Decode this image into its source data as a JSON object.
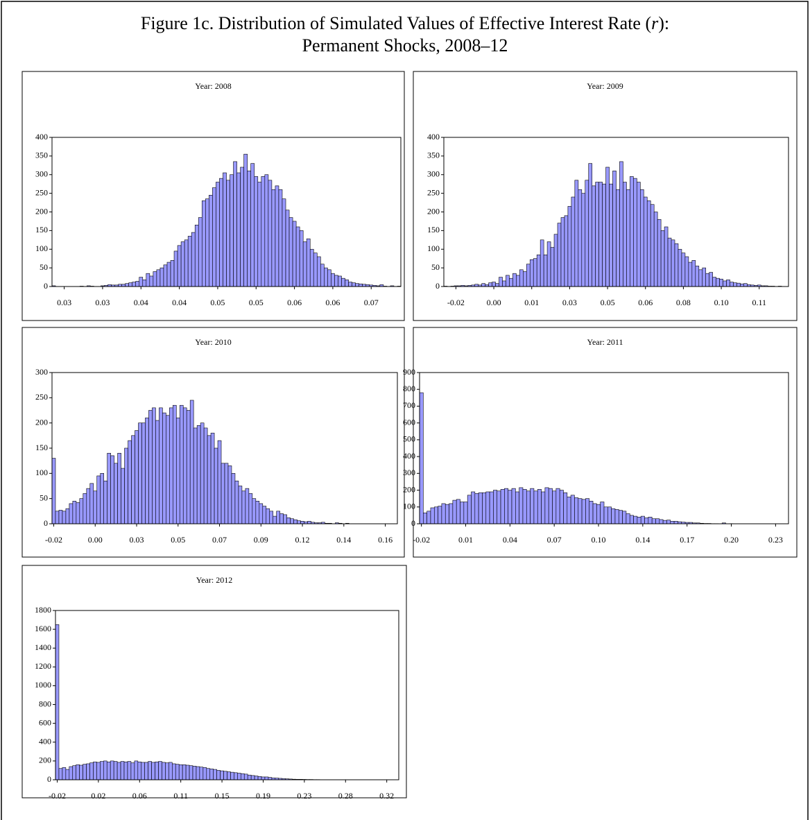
{
  "figure_title": [
    "Figure 1c. Distribution of Simulated Values of Effective Interest Rate (",
    "r",
    "):",
    "Permanent Shocks, 2008–12"
  ],
  "chart_data": [
    {
      "type": "bar",
      "title": "Year: 2008",
      "color": "#9999ff",
      "ylim": [
        0,
        400
      ],
      "yticks": [
        0,
        50,
        100,
        150,
        200,
        250,
        300,
        350,
        400
      ],
      "categories": [
        null,
        null,
        null,
        "0.03",
        null,
        null,
        null,
        null,
        null,
        null,
        null,
        null,
        null,
        null,
        "0.03",
        null,
        null,
        null,
        null,
        null,
        null,
        null,
        null,
        null,
        null,
        "0.04",
        null,
        null,
        null,
        null,
        null,
        null,
        null,
        null,
        null,
        null,
        "0.04",
        null,
        null,
        null,
        null,
        null,
        null,
        null,
        null,
        null,
        null,
        "0.05",
        null,
        null,
        null,
        null,
        null,
        null,
        null,
        null,
        null,
        null,
        "0.05",
        null,
        null,
        null,
        null,
        null,
        null,
        null,
        null,
        null,
        null,
        "0.06",
        null,
        null,
        null,
        null,
        null,
        null,
        null,
        null,
        null,
        null,
        "0.06",
        null,
        null,
        null,
        null,
        null,
        null,
        null,
        null,
        null,
        null,
        "0.07",
        null,
        null,
        null,
        null,
        null,
        null,
        null,
        null
      ],
      "values": [
        2,
        0,
        0,
        0,
        0,
        0,
        0,
        0,
        1,
        0,
        2,
        1,
        0,
        0,
        2,
        3,
        5,
        4,
        4,
        6,
        6,
        8,
        10,
        12,
        14,
        25,
        18,
        35,
        28,
        40,
        45,
        50,
        58,
        65,
        70,
        95,
        110,
        120,
        125,
        135,
        145,
        165,
        185,
        230,
        235,
        245,
        265,
        280,
        290,
        305,
        285,
        300,
        335,
        305,
        320,
        355,
        310,
        330,
        295,
        280,
        295,
        300,
        285,
        260,
        270,
        260,
        235,
        205,
        185,
        175,
        160,
        150,
        120,
        128,
        100,
        90,
        80,
        60,
        50,
        45,
        35,
        30,
        28,
        22,
        18,
        12,
        10,
        8,
        7,
        6,
        5,
        4,
        3,
        2,
        5,
        1,
        0,
        2,
        0,
        1
      ]
    },
    {
      "type": "bar",
      "title": "Year: 2009",
      "color": "#9999ff",
      "ylim": [
        0,
        400
      ],
      "yticks": [
        0,
        50,
        100,
        150,
        200,
        250,
        300,
        350,
        400
      ],
      "categories": [
        null,
        null,
        null,
        "-0.02",
        null,
        null,
        null,
        null,
        null,
        null,
        null,
        null,
        null,
        null,
        "0.00",
        null,
        null,
        null,
        null,
        null,
        null,
        null,
        null,
        null,
        null,
        "0.01",
        null,
        null,
        null,
        null,
        null,
        null,
        null,
        null,
        null,
        null,
        "0.03",
        null,
        null,
        null,
        null,
        null,
        null,
        null,
        null,
        null,
        null,
        "0.05",
        null,
        null,
        null,
        null,
        null,
        null,
        null,
        null,
        null,
        null,
        "0.06",
        null,
        null,
        null,
        null,
        null,
        null,
        null,
        null,
        null,
        null,
        "0.08",
        null,
        null,
        null,
        null,
        null,
        null,
        null,
        null,
        null,
        null,
        "0.10",
        null,
        null,
        null,
        null,
        null,
        null,
        null,
        null,
        null,
        null,
        "0.11",
        null,
        null,
        null,
        null,
        null,
        null,
        null,
        null
      ],
      "values": [
        1,
        0,
        1,
        2,
        2,
        3,
        2,
        3,
        4,
        6,
        4,
        8,
        5,
        10,
        12,
        8,
        25,
        15,
        30,
        22,
        35,
        30,
        45,
        40,
        60,
        72,
        75,
        85,
        125,
        85,
        120,
        105,
        140,
        170,
        185,
        190,
        215,
        240,
        285,
        260,
        250,
        285,
        330,
        270,
        280,
        280,
        275,
        320,
        275,
        310,
        260,
        335,
        280,
        260,
        295,
        290,
        280,
        260,
        240,
        230,
        220,
        200,
        180,
        150,
        160,
        130,
        125,
        115,
        100,
        90,
        80,
        65,
        70,
        55,
        45,
        50,
        35,
        38,
        25,
        22,
        20,
        15,
        18,
        12,
        10,
        9,
        7,
        8,
        5,
        4,
        3,
        4,
        2,
        2,
        1,
        1,
        0,
        1,
        0,
        0
      ]
    },
    {
      "type": "bar",
      "title": "Year: 2010",
      "color": "#9999ff",
      "ylim": [
        0,
        300
      ],
      "yticks": [
        0,
        50,
        100,
        150,
        200,
        250,
        300
      ],
      "categories": [
        "-0.02",
        null,
        null,
        null,
        null,
        null,
        null,
        null,
        null,
        null,
        null,
        null,
        "0.00",
        null,
        null,
        null,
        null,
        null,
        null,
        null,
        null,
        null,
        null,
        null,
        "0.03",
        null,
        null,
        null,
        null,
        null,
        null,
        null,
        null,
        null,
        null,
        null,
        "0.05",
        null,
        null,
        null,
        null,
        null,
        null,
        null,
        null,
        null,
        null,
        null,
        "0.07",
        null,
        null,
        null,
        null,
        null,
        null,
        null,
        null,
        null,
        null,
        null,
        "0.09",
        null,
        null,
        null,
        null,
        null,
        null,
        null,
        null,
        null,
        null,
        null,
        "0.12",
        null,
        null,
        null,
        null,
        null,
        null,
        null,
        null,
        null,
        null,
        null,
        "0.14",
        null,
        null,
        null,
        null,
        null,
        null,
        null,
        null,
        null,
        null,
        null,
        "0.16",
        null,
        null,
        null
      ],
      "values": [
        130,
        25,
        27,
        25,
        30,
        40,
        45,
        42,
        50,
        60,
        70,
        80,
        65,
        95,
        100,
        85,
        140,
        135,
        120,
        140,
        110,
        150,
        165,
        175,
        185,
        200,
        200,
        210,
        225,
        230,
        205,
        230,
        220,
        215,
        230,
        235,
        210,
        235,
        230,
        225,
        245,
        190,
        195,
        200,
        190,
        175,
        180,
        150,
        165,
        120,
        120,
        115,
        100,
        85,
        75,
        65,
        70,
        60,
        50,
        45,
        40,
        35,
        30,
        25,
        15,
        25,
        20,
        18,
        12,
        10,
        8,
        6,
        5,
        4,
        5,
        3,
        2,
        2,
        3,
        1,
        1,
        0,
        2,
        1,
        0,
        1,
        0,
        0,
        0,
        0,
        0,
        0,
        0,
        0,
        0,
        0,
        0,
        0,
        0,
        0
      ]
    },
    {
      "type": "bar",
      "title": "Year: 2011",
      "color": "#9999ff",
      "ylim": [
        0,
        900
      ],
      "yticks": [
        0,
        100,
        200,
        300,
        400,
        500,
        600,
        700,
        800,
        900
      ],
      "categories": [
        "-0.02",
        null,
        null,
        null,
        null,
        null,
        null,
        null,
        null,
        null,
        null,
        null,
        "0.01",
        null,
        null,
        null,
        null,
        null,
        null,
        null,
        null,
        null,
        null,
        null,
        "0.04",
        null,
        null,
        null,
        null,
        null,
        null,
        null,
        null,
        null,
        null,
        null,
        "0.07",
        null,
        null,
        null,
        null,
        null,
        null,
        null,
        null,
        null,
        null,
        null,
        "0.10",
        null,
        null,
        null,
        null,
        null,
        null,
        null,
        null,
        null,
        null,
        null,
        "0.14",
        null,
        null,
        null,
        null,
        null,
        null,
        null,
        null,
        null,
        null,
        null,
        "0.17",
        null,
        null,
        null,
        null,
        null,
        null,
        null,
        null,
        null,
        null,
        null,
        "0.20",
        null,
        null,
        null,
        null,
        null,
        null,
        null,
        null,
        null,
        null,
        null,
        "0.23",
        null,
        null,
        null
      ],
      "values": [
        780,
        65,
        75,
        95,
        100,
        105,
        120,
        115,
        120,
        140,
        145,
        130,
        130,
        170,
        190,
        180,
        185,
        185,
        190,
        190,
        200,
        195,
        205,
        210,
        200,
        210,
        190,
        215,
        205,
        195,
        210,
        195,
        205,
        190,
        215,
        210,
        195,
        210,
        200,
        185,
        160,
        170,
        155,
        150,
        145,
        150,
        135,
        120,
        115,
        130,
        100,
        100,
        90,
        85,
        80,
        75,
        60,
        50,
        45,
        40,
        45,
        35,
        40,
        30,
        30,
        25,
        20,
        22,
        15,
        15,
        12,
        10,
        8,
        8,
        5,
        5,
        3,
        2,
        2,
        1,
        1,
        0,
        5,
        0,
        1,
        0,
        0,
        0,
        0,
        0,
        0,
        0,
        0,
        0,
        0,
        0,
        0,
        0,
        0,
        0
      ]
    },
    {
      "type": "bar",
      "title": "Year: 2012",
      "color": "#9999ff",
      "ylim": [
        0,
        1800
      ],
      "yticks": [
        0,
        200,
        400,
        600,
        800,
        1000,
        1200,
        1400,
        1600,
        1800
      ],
      "categories": [
        "-0.02",
        null,
        null,
        null,
        null,
        null,
        null,
        null,
        null,
        null,
        null,
        null,
        "0.02",
        null,
        null,
        null,
        null,
        null,
        null,
        null,
        null,
        null,
        null,
        null,
        "0.06",
        null,
        null,
        null,
        null,
        null,
        null,
        null,
        null,
        null,
        null,
        null,
        "0.11",
        null,
        null,
        null,
        null,
        null,
        null,
        null,
        null,
        null,
        null,
        null,
        "0.15",
        null,
        null,
        null,
        null,
        null,
        null,
        null,
        null,
        null,
        null,
        null,
        "0.19",
        null,
        null,
        null,
        null,
        null,
        null,
        null,
        null,
        null,
        null,
        null,
        "0.23",
        null,
        null,
        null,
        null,
        null,
        null,
        null,
        null,
        null,
        null,
        null,
        "0.28",
        null,
        null,
        null,
        null,
        null,
        null,
        null,
        null,
        null,
        null,
        null,
        "0.32",
        null,
        null,
        null
      ],
      "values": [
        1650,
        120,
        130,
        110,
        140,
        150,
        160,
        155,
        165,
        170,
        180,
        190,
        185,
        195,
        200,
        190,
        200,
        195,
        185,
        195,
        190,
        195,
        180,
        200,
        190,
        185,
        185,
        195,
        185,
        190,
        195,
        185,
        180,
        185,
        170,
        165,
        160,
        160,
        155,
        150,
        145,
        140,
        135,
        130,
        120,
        115,
        110,
        100,
        95,
        90,
        85,
        80,
        75,
        70,
        65,
        60,
        50,
        45,
        40,
        35,
        30,
        30,
        25,
        20,
        18,
        15,
        12,
        10,
        8,
        6,
        5,
        5,
        4,
        3,
        3,
        2,
        2,
        1,
        1,
        0,
        0,
        0,
        0,
        0,
        0,
        0,
        0,
        0,
        0,
        0,
        0,
        0,
        0,
        0,
        0,
        0,
        0,
        0,
        0,
        0
      ]
    }
  ]
}
